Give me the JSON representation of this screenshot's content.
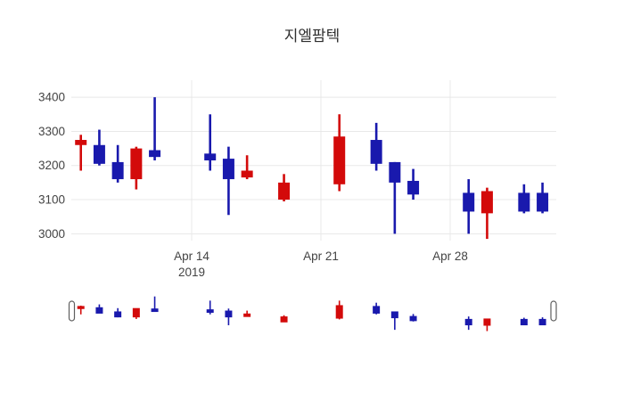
{
  "title": "지엘팜텍",
  "colors": {
    "up": "#d30a0a",
    "down": "#1919ad",
    "grid": "#e8e8e8",
    "tick_text": "#444444",
    "title_text": "#2f2f2f",
    "background": "#ffffff",
    "grabber_fill": "#ffffff",
    "grabber_border": "#5f5f5f"
  },
  "chart_data": {
    "type": "candlestick",
    "title": "지엘팜텍",
    "legend": "none",
    "grid": "on",
    "y_axis": {
      "tick_values": [
        3400,
        3300,
        3200,
        3100,
        3000
      ],
      "tick_labels": [
        "3400",
        "3300",
        "3200",
        "3100",
        "3000"
      ],
      "range": [
        2980,
        3450
      ]
    },
    "x_axis": {
      "ticks": [
        {
          "label": "Apr 14",
          "sub_label": "2019",
          "day": 6
        },
        {
          "label": "Apr 21",
          "sub_label": "",
          "day": 13
        },
        {
          "label": "Apr 28",
          "sub_label": "",
          "day": 20
        }
      ]
    },
    "candles": [
      {
        "date": "Apr 8",
        "day": 0,
        "open": 3260,
        "high": 3290,
        "low": 3185,
        "close": 3275
      },
      {
        "date": "Apr 9",
        "day": 1,
        "open": 3260,
        "high": 3305,
        "low": 3200,
        "close": 3205
      },
      {
        "date": "Apr 10",
        "day": 2,
        "open": 3210,
        "high": 3260,
        "low": 3150,
        "close": 3160
      },
      {
        "date": "Apr 11",
        "day": 3,
        "open": 3160,
        "high": 3255,
        "low": 3130,
        "close": 3250
      },
      {
        "date": "Apr 12",
        "day": 4,
        "open": 3245,
        "high": 3400,
        "low": 3215,
        "close": 3225
      },
      {
        "date": "Apr 15",
        "day": 7,
        "open": 3235,
        "high": 3350,
        "low": 3185,
        "close": 3215
      },
      {
        "date": "Apr 16",
        "day": 8,
        "open": 3220,
        "high": 3255,
        "low": 3055,
        "close": 3160
      },
      {
        "date": "Apr 17",
        "day": 9,
        "open": 3165,
        "high": 3230,
        "low": 3160,
        "close": 3185
      },
      {
        "date": "Apr 19",
        "day": 11,
        "open": 3100,
        "high": 3175,
        "low": 3095,
        "close": 3150
      },
      {
        "date": "Apr 22",
        "day": 14,
        "open": 3145,
        "high": 3350,
        "low": 3125,
        "close": 3285
      },
      {
        "date": "Apr 24",
        "day": 16,
        "open": 3275,
        "high": 3325,
        "low": 3185,
        "close": 3205
      },
      {
        "date": "Apr 25",
        "day": 17,
        "open": 3210,
        "high": 3210,
        "low": 3000,
        "close": 3150
      },
      {
        "date": "Apr 26",
        "day": 18,
        "open": 3155,
        "high": 3190,
        "low": 3100,
        "close": 3115
      },
      {
        "date": "Apr 29",
        "day": 21,
        "open": 3120,
        "high": 3160,
        "low": 3000,
        "close": 3065
      },
      {
        "date": "Apr 30",
        "day": 22,
        "open": 3060,
        "high": 3135,
        "low": 2985,
        "close": 3125
      },
      {
        "date": "May 2",
        "day": 24,
        "open": 3120,
        "high": 3145,
        "low": 3060,
        "close": 3065
      },
      {
        "date": "May 3",
        "day": 25,
        "open": 3120,
        "high": 3150,
        "low": 3060,
        "close": 3065
      }
    ],
    "rangeslider": {
      "visible": true
    }
  }
}
